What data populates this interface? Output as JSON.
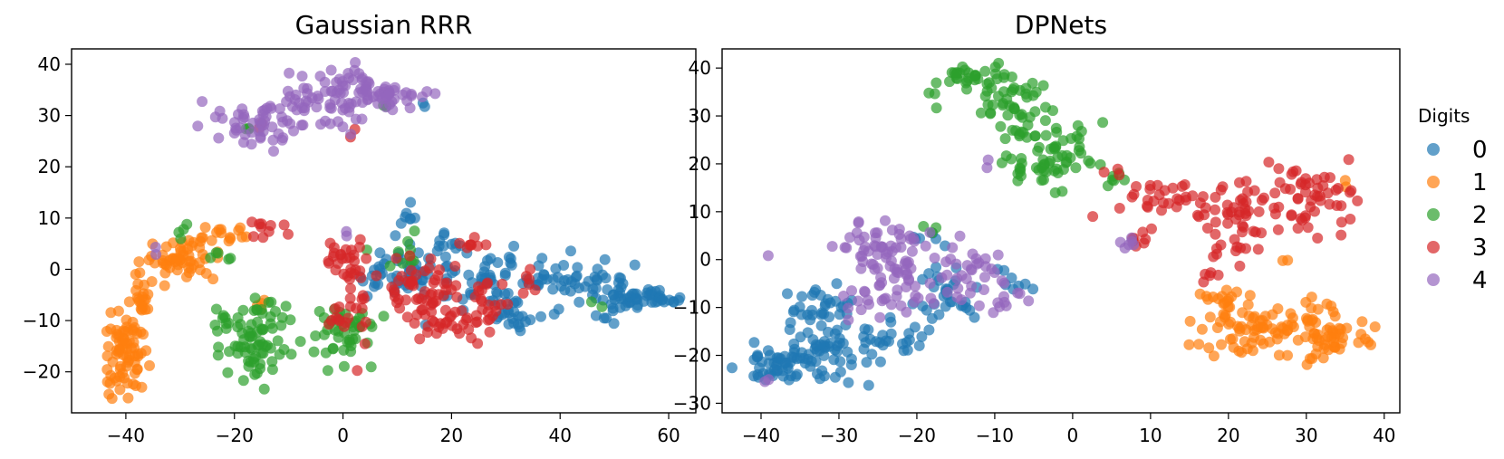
{
  "figure": {
    "legend": {
      "title": "Digits",
      "entries": [
        {
          "label": "0",
          "color": "#1f77b4"
        },
        {
          "label": "1",
          "color": "#ff7f0e"
        },
        {
          "label": "2",
          "color": "#2ca02c"
        },
        {
          "label": "3",
          "color": "#d62728"
        },
        {
          "label": "4",
          "color": "#9467bd"
        }
      ],
      "placement": "right, outside plots"
    }
  },
  "chart_data": [
    {
      "type": "scatter",
      "title": "Gaussian RRR",
      "xlim": [
        -50,
        65
      ],
      "ylim": [
        -28,
        43
      ],
      "xticks": [
        -40,
        -20,
        0,
        20,
        40,
        60
      ],
      "yticks": [
        -20,
        -10,
        0,
        10,
        20,
        30,
        40
      ],
      "xtick_labels": [
        "−40",
        "−20",
        "0",
        "20",
        "40",
        "60"
      ],
      "ytick_labels": [
        "−20",
        "−10",
        "0",
        "10",
        "20",
        "30",
        "40"
      ],
      "grid": false,
      "point_alpha": 0.7,
      "series": [
        {
          "name": "0",
          "color": "#1f77b4",
          "clusters": [
            {
              "center": [
                10,
                -1
              ],
              "spread": [
                6,
                3
              ],
              "n": 45
            },
            {
              "center": [
                28,
                -2
              ],
              "spread": [
                8,
                4
              ],
              "n": 60
            },
            {
              "center": [
                45,
                -3
              ],
              "spread": [
                7,
                3
              ],
              "n": 60
            },
            {
              "center": [
                55,
                -6
              ],
              "spread": [
                4,
                1
              ],
              "n": 40
            },
            {
              "center": [
                12,
                10
              ],
              "spread": [
                1.5,
                1.5
              ],
              "n": 8
            },
            {
              "center": [
                32,
                -10
              ],
              "spread": [
                3,
                2
              ],
              "n": 15
            },
            {
              "center": [
                20,
                5
              ],
              "spread": [
                3,
                2
              ],
              "n": 12
            },
            {
              "center": [
                14,
                33
              ],
              "spread": [
                1,
                1
              ],
              "n": 2
            }
          ]
        },
        {
          "name": "1",
          "color": "#ff7f0e",
          "clusters": [
            {
              "center": [
                -40,
                -17
              ],
              "spread": [
                2.5,
                5
              ],
              "n": 75
            },
            {
              "center": [
                -37,
                -5
              ],
              "spread": [
                2,
                2.5
              ],
              "n": 20
            },
            {
              "center": [
                -30,
                2
              ],
              "spread": [
                4,
                2.5
              ],
              "n": 55
            },
            {
              "center": [
                -22,
                7
              ],
              "spread": [
                3,
                1.5
              ],
              "n": 15
            },
            {
              "center": [
                -14,
                -7
              ],
              "spread": [
                1,
                1
              ],
              "n": 4
            }
          ]
        },
        {
          "name": "2",
          "color": "#2ca02c",
          "clusters": [
            {
              "center": [
                -16,
                -15
              ],
              "spread": [
                4,
                4
              ],
              "n": 60
            },
            {
              "center": [
                -21,
                -10
              ],
              "spread": [
                1.5,
                1.5
              ],
              "n": 12
            },
            {
              "center": [
                0,
                -12
              ],
              "spread": [
                4,
                4
              ],
              "n": 45
            },
            {
              "center": [
                -23,
                3
              ],
              "spread": [
                1.5,
                1.5
              ],
              "n": 5
            },
            {
              "center": [
                -30,
                7
              ],
              "spread": [
                1.5,
                1.5
              ],
              "n": 4
            },
            {
              "center": [
                -14,
                -8
              ],
              "spread": [
                2.5,
                1.5
              ],
              "n": 10
            },
            {
              "center": [
                10,
                3
              ],
              "spread": [
                4,
                3
              ],
              "n": 10
            },
            {
              "center": [
                -18,
                28
              ],
              "spread": [
                1,
                1
              ],
              "n": 3
            },
            {
              "center": [
                8,
                32
              ],
              "spread": [
                1,
                1
              ],
              "n": 2
            },
            {
              "center": [
                46,
                -7
              ],
              "spread": [
                1,
                1
              ],
              "n": 2
            }
          ]
        },
        {
          "name": "3",
          "color": "#d62728",
          "clusters": [
            {
              "center": [
                1,
                1
              ],
              "spread": [
                3,
                3
              ],
              "n": 30
            },
            {
              "center": [
                14,
                -4
              ],
              "spread": [
                5,
                4
              ],
              "n": 50
            },
            {
              "center": [
                18,
                -9
              ],
              "spread": [
                3,
                3
              ],
              "n": 25
            },
            {
              "center": [
                26,
                -7
              ],
              "spread": [
                3,
                4
              ],
              "n": 30
            },
            {
              "center": [
                2,
                -9
              ],
              "spread": [
                3,
                4
              ],
              "n": 20
            },
            {
              "center": [
                24,
                5
              ],
              "spread": [
                2,
                1.5
              ],
              "n": 8
            },
            {
              "center": [
                -14,
                8
              ],
              "spread": [
                2.5,
                1.5
              ],
              "n": 10
            },
            {
              "center": [
                35,
                -2
              ],
              "spread": [
                2,
                2
              ],
              "n": 6
            },
            {
              "center": [
                2,
                27
              ],
              "spread": [
                0.8,
                0.8
              ],
              "n": 2
            },
            {
              "center": [
                -16,
                28
              ],
              "spread": [
                1,
                1
              ],
              "n": 2
            }
          ]
        },
        {
          "name": "4",
          "color": "#9467bd",
          "clusters": [
            {
              "center": [
                -14,
                29
              ],
              "spread": [
                5,
                3
              ],
              "n": 55
            },
            {
              "center": [
                0,
                35
              ],
              "spread": [
                5,
                2.5
              ],
              "n": 50
            },
            {
              "center": [
                10,
                34
              ],
              "spread": [
                3.5,
                1.5
              ],
              "n": 30
            },
            {
              "center": [
                0,
                30
              ],
              "spread": [
                3,
                2.5
              ],
              "n": 15
            },
            {
              "center": [
                -6,
                33
              ],
              "spread": [
                2.5,
                2
              ],
              "n": 12
            },
            {
              "center": [
                0,
                7
              ],
              "spread": [
                0.6,
                0.6
              ],
              "n": 2
            },
            {
              "center": [
                -35,
                4
              ],
              "spread": [
                1,
                1
              ],
              "n": 2
            }
          ]
        }
      ]
    },
    {
      "type": "scatter",
      "title": "DPNets",
      "xlim": [
        -45,
        42
      ],
      "ylim": [
        -32,
        44
      ],
      "xticks": [
        -40,
        -30,
        -20,
        -10,
        0,
        10,
        20,
        30,
        40
      ],
      "yticks": [
        -30,
        -20,
        -10,
        0,
        10,
        20,
        30,
        40
      ],
      "xtick_labels": [
        "−40",
        "−30",
        "−20",
        "−10",
        "0",
        "10",
        "20",
        "30",
        "40"
      ],
      "ytick_labels": [
        "−30",
        "−20",
        "−10",
        "0",
        "10",
        "20",
        "30",
        "40"
      ],
      "grid": false,
      "point_alpha": 0.7,
      "series": [
        {
          "name": "0",
          "color": "#1f77b4",
          "clusters": [
            {
              "center": [
                -38,
                -22
              ],
              "spread": [
                3,
                3
              ],
              "n": 40
            },
            {
              "center": [
                -32,
                -20
              ],
              "spread": [
                4,
                4
              ],
              "n": 60
            },
            {
              "center": [
                -32,
                -10
              ],
              "spread": [
                2.5,
                3
              ],
              "n": 30
            },
            {
              "center": [
                -23,
                -17
              ],
              "spread": [
                3,
                3
              ],
              "n": 25
            },
            {
              "center": [
                -15,
                -7
              ],
              "spread": [
                3,
                4
              ],
              "n": 30
            },
            {
              "center": [
                -19,
                4
              ],
              "spread": [
                1.5,
                1.5
              ],
              "n": 6
            },
            {
              "center": [
                -8,
                -5
              ],
              "spread": [
                2,
                2
              ],
              "n": 8
            }
          ]
        },
        {
          "name": "1",
          "color": "#ff7f0e",
          "clusters": [
            {
              "center": [
                24,
                -14
              ],
              "spread": [
                5,
                4
              ],
              "n": 80
            },
            {
              "center": [
                33,
                -16
              ],
              "spread": [
                3,
                4
              ],
              "n": 50
            },
            {
              "center": [
                19,
                -8
              ],
              "spread": [
                1.5,
                2
              ],
              "n": 12
            },
            {
              "center": [
                35,
                15
              ],
              "spread": [
                0.6,
                0.6
              ],
              "n": 2
            },
            {
              "center": [
                27,
                0
              ],
              "spread": [
                0.6,
                0.6
              ],
              "n": 2
            }
          ]
        },
        {
          "name": "2",
          "color": "#2ca02c",
          "clusters": [
            {
              "center": [
                -13,
                37
              ],
              "spread": [
                3.5,
                2.5
              ],
              "n": 40
            },
            {
              "center": [
                -7,
                30
              ],
              "spread": [
                3,
                4
              ],
              "n": 45
            },
            {
              "center": [
                -4,
                20
              ],
              "spread": [
                4,
                3
              ],
              "n": 40
            },
            {
              "center": [
                0,
                24
              ],
              "spread": [
                2,
                3
              ],
              "n": 15
            },
            {
              "center": [
                6,
                17
              ],
              "spread": [
                1.5,
                1
              ],
              "n": 6
            },
            {
              "center": [
                -18,
                7
              ],
              "spread": [
                1,
                1
              ],
              "n": 3
            },
            {
              "center": [
                -2,
                14
              ],
              "spread": [
                0.6,
                0.6
              ],
              "n": 2
            }
          ]
        },
        {
          "name": "3",
          "color": "#d62728",
          "clusters": [
            {
              "center": [
                14,
                13
              ],
              "spread": [
                5,
                2.5
              ],
              "n": 35
            },
            {
              "center": [
                22,
                10
              ],
              "spread": [
                3,
                4
              ],
              "n": 40
            },
            {
              "center": [
                31,
                13
              ],
              "spread": [
                3,
                4
              ],
              "n": 50
            },
            {
              "center": [
                20,
                2
              ],
              "spread": [
                2,
                2
              ],
              "n": 10
            },
            {
              "center": [
                9,
                5
              ],
              "spread": [
                1.5,
                1.2
              ],
              "n": 8
            },
            {
              "center": [
                18,
                -3
              ],
              "spread": [
                1,
                1
              ],
              "n": 5
            },
            {
              "center": [
                5,
                18
              ],
              "spread": [
                1,
                1
              ],
              "n": 3
            }
          ]
        },
        {
          "name": "4",
          "color": "#9467bd",
          "clusters": [
            {
              "center": [
                -25,
                3
              ],
              "spread": [
                4,
                3
              ],
              "n": 45
            },
            {
              "center": [
                -22,
                -5
              ],
              "spread": [
                3,
                4
              ],
              "n": 40
            },
            {
              "center": [
                -14,
                -3
              ],
              "spread": [
                4,
                4
              ],
              "n": 35
            },
            {
              "center": [
                -28,
                -8
              ],
              "spread": [
                2,
                2
              ],
              "n": 10
            },
            {
              "center": [
                -9,
                -9
              ],
              "spread": [
                2,
                1.5
              ],
              "n": 10
            },
            {
              "center": [
                7,
                4
              ],
              "spread": [
                1,
                1
              ],
              "n": 6
            },
            {
              "center": [
                -11,
                20
              ],
              "spread": [
                1,
                1
              ],
              "n": 2
            },
            {
              "center": [
                -39,
                -25
              ],
              "spread": [
                0.6,
                0.6
              ],
              "n": 2
            }
          ]
        }
      ]
    }
  ]
}
